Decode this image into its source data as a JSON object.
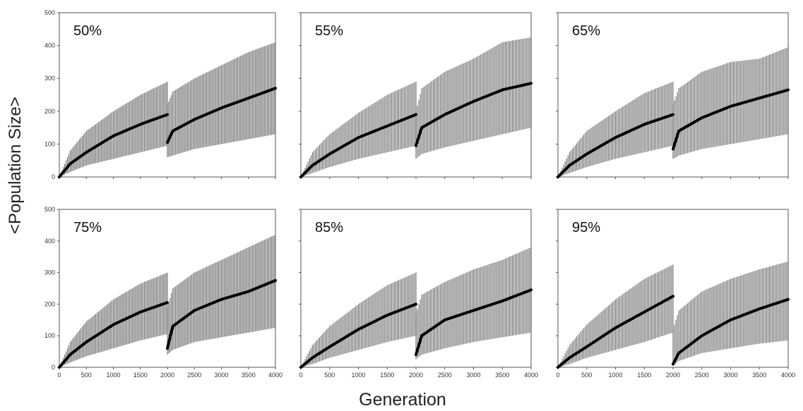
{
  "figure": {
    "ylabel": "<Population Size>",
    "xlabel": "Generation"
  },
  "chart_data": [
    {
      "type": "line",
      "title": "50%",
      "xlim": [
        0,
        4000
      ],
      "ylim": [
        0,
        500
      ],
      "xticks": [
        0,
        500,
        1000,
        1500,
        2000,
        2500,
        3000,
        3500,
        4000
      ],
      "yticks": [
        0,
        100,
        200,
        300,
        400,
        500
      ],
      "series": [
        {
          "x": [
            0,
            200,
            500,
            1000,
            1500,
            2000
          ],
          "y": [
            0,
            40,
            75,
            125,
            160,
            190
          ],
          "lower": [
            0,
            15,
            35,
            55,
            75,
            95
          ],
          "upper": [
            0,
            80,
            140,
            200,
            250,
            290
          ]
        },
        {
          "x": [
            2000,
            2100,
            2500,
            3000,
            3500,
            4000
          ],
          "y": [
            105,
            140,
            175,
            210,
            240,
            270
          ],
          "lower": [
            60,
            65,
            85,
            100,
            115,
            130
          ],
          "upper": [
            220,
            260,
            300,
            340,
            380,
            410
          ]
        }
      ]
    },
    {
      "type": "line",
      "title": "55%",
      "xlim": [
        0,
        4000
      ],
      "ylim": [
        0,
        500
      ],
      "xticks": [
        0,
        500,
        1000,
        1500,
        2000,
        2500,
        3000,
        3500,
        4000
      ],
      "yticks": [
        0,
        100,
        200,
        300,
        400,
        500
      ],
      "series": [
        {
          "x": [
            0,
            200,
            500,
            1000,
            1500,
            2000
          ],
          "y": [
            0,
            35,
            70,
            120,
            155,
            190
          ],
          "lower": [
            0,
            12,
            30,
            55,
            75,
            95
          ],
          "upper": [
            0,
            75,
            130,
            195,
            250,
            290
          ]
        },
        {
          "x": [
            2000,
            2100,
            2500,
            3000,
            3500,
            4000
          ],
          "y": [
            95,
            150,
            190,
            230,
            265,
            285
          ],
          "lower": [
            55,
            70,
            90,
            110,
            130,
            150
          ],
          "upper": [
            200,
            270,
            320,
            360,
            410,
            425
          ]
        }
      ]
    },
    {
      "type": "line",
      "title": "65%",
      "xlim": [
        0,
        4000
      ],
      "ylim": [
        0,
        500
      ],
      "xticks": [
        0,
        500,
        1000,
        1500,
        2000,
        2500,
        3000,
        3500,
        4000
      ],
      "yticks": [
        0,
        100,
        200,
        300,
        400,
        500
      ],
      "series": [
        {
          "x": [
            0,
            200,
            500,
            1000,
            1500,
            2000
          ],
          "y": [
            0,
            35,
            70,
            120,
            160,
            190
          ],
          "lower": [
            0,
            12,
            30,
            55,
            75,
            95
          ],
          "upper": [
            0,
            75,
            140,
            200,
            255,
            290
          ]
        },
        {
          "x": [
            2000,
            2100,
            2500,
            3000,
            3500,
            4000
          ],
          "y": [
            85,
            140,
            180,
            215,
            240,
            265
          ],
          "lower": [
            55,
            65,
            85,
            100,
            115,
            130
          ],
          "upper": [
            220,
            270,
            320,
            350,
            360,
            395
          ]
        }
      ]
    },
    {
      "type": "line",
      "title": "75%",
      "xlim": [
        0,
        4000
      ],
      "ylim": [
        0,
        500
      ],
      "xticks": [
        0,
        500,
        1000,
        1500,
        2000,
        2500,
        3000,
        3500,
        4000
      ],
      "yticks": [
        0,
        100,
        200,
        300,
        400,
        500
      ],
      "series": [
        {
          "x": [
            0,
            200,
            500,
            1000,
            1500,
            2000
          ],
          "y": [
            0,
            40,
            80,
            135,
            175,
            205
          ],
          "lower": [
            0,
            15,
            35,
            60,
            85,
            105
          ],
          "upper": [
            0,
            80,
            145,
            215,
            265,
            300
          ]
        },
        {
          "x": [
            2000,
            2100,
            2500,
            3000,
            3500,
            4000
          ],
          "y": [
            60,
            130,
            180,
            215,
            240,
            275
          ],
          "lower": [
            40,
            55,
            80,
            95,
            110,
            125
          ],
          "upper": [
            190,
            250,
            300,
            340,
            380,
            420
          ]
        }
      ]
    },
    {
      "type": "line",
      "title": "85%",
      "xlim": [
        0,
        4000
      ],
      "ylim": [
        0,
        500
      ],
      "xticks": [
        0,
        500,
        1000,
        1500,
        2000,
        2500,
        3000,
        3500,
        4000
      ],
      "yticks": [
        0,
        100,
        200,
        300,
        400,
        500
      ],
      "series": [
        {
          "x": [
            0,
            200,
            500,
            1000,
            1500,
            2000
          ],
          "y": [
            0,
            30,
            65,
            120,
            165,
            200
          ],
          "lower": [
            0,
            10,
            30,
            55,
            80,
            100
          ],
          "upper": [
            0,
            70,
            130,
            200,
            260,
            300
          ]
        },
        {
          "x": [
            2000,
            2100,
            2500,
            3000,
            3500,
            4000
          ],
          "y": [
            40,
            100,
            150,
            180,
            210,
            245
          ],
          "lower": [
            25,
            40,
            60,
            80,
            95,
            110
          ],
          "upper": [
            170,
            230,
            270,
            310,
            340,
            380
          ]
        }
      ]
    },
    {
      "type": "line",
      "title": "95%",
      "xlim": [
        0,
        4000
      ],
      "ylim": [
        0,
        500
      ],
      "xticks": [
        0,
        500,
        1000,
        1500,
        2000,
        2500,
        3000,
        3500,
        4000
      ],
      "yticks": [
        0,
        100,
        200,
        300,
        400,
        500
      ],
      "series": [
        {
          "x": [
            0,
            200,
            500,
            1000,
            1500,
            2000
          ],
          "y": [
            0,
            30,
            65,
            125,
            175,
            225
          ],
          "lower": [
            0,
            10,
            30,
            55,
            80,
            110
          ],
          "upper": [
            0,
            70,
            135,
            215,
            280,
            325
          ]
        },
        {
          "x": [
            2000,
            2100,
            2500,
            3000,
            3500,
            4000
          ],
          "y": [
            10,
            45,
            100,
            150,
            185,
            215
          ],
          "lower": [
            5,
            20,
            45,
            60,
            75,
            85
          ],
          "upper": [
            120,
            180,
            240,
            280,
            310,
            335
          ]
        }
      ]
    }
  ]
}
